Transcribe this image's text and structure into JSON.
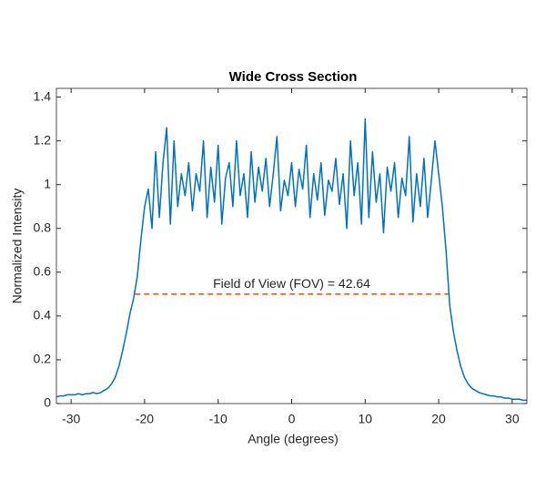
{
  "chart_data": {
    "type": "line",
    "title": "Wide Cross Section",
    "x_label": "Angle (degrees)",
    "y_label": "Normalized Intensity",
    "x": [
      -32,
      -31.5,
      -31,
      -30.5,
      -30,
      -29.5,
      -29,
      -28.5,
      -28,
      -27.5,
      -27,
      -26.5,
      -26,
      -25.5,
      -25,
      -24.5,
      -24,
      -23.5,
      -23,
      -22.5,
      -22,
      -21.5,
      -21,
      -20.5,
      -20,
      -19.5,
      -19,
      -18.5,
      -18,
      -17.5,
      -17,
      -16.5,
      -16,
      -15.5,
      -15,
      -14.5,
      -14,
      -13.5,
      -13,
      -12.5,
      -12,
      -11.5,
      -11,
      -10.5,
      -10,
      -9.5,
      -9,
      -8.5,
      -8,
      -7.5,
      -7,
      -6.5,
      -6,
      -5.5,
      -5,
      -4.5,
      -4,
      -3.5,
      -3,
      -2.5,
      -2,
      -1.5,
      -1,
      -0.5,
      0,
      0.5,
      1,
      1.5,
      2,
      2.5,
      3,
      3.5,
      4,
      4.5,
      5,
      5.5,
      6,
      6.5,
      7,
      7.5,
      8,
      8.5,
      9,
      9.5,
      10,
      10.5,
      11,
      11.5,
      12,
      12.5,
      13,
      13.5,
      14,
      14.5,
      15,
      15.5,
      16,
      16.5,
      17,
      17.5,
      18,
      18.5,
      19,
      19.5,
      20,
      20.5,
      21,
      21.5,
      22,
      22.5,
      23,
      23.5,
      24,
      24.5,
      25,
      25.5,
      26,
      26.5,
      27,
      27.5,
      28,
      28.5,
      29,
      29.5,
      30,
      30.5,
      31,
      31.5,
      32
    ],
    "series": [
      {
        "name": "Cross Section",
        "color": "#0072bd",
        "values": [
          0.03,
          0.035,
          0.035,
          0.04,
          0.04,
          0.04,
          0.045,
          0.04,
          0.045,
          0.045,
          0.05,
          0.045,
          0.05,
          0.06,
          0.07,
          0.09,
          0.12,
          0.17,
          0.24,
          0.32,
          0.41,
          0.48,
          0.58,
          0.75,
          0.9,
          0.98,
          0.8,
          1.15,
          0.85,
          1.1,
          1.26,
          0.82,
          1.2,
          0.9,
          1.05,
          0.95,
          1.1,
          0.88,
          1.05,
          0.97,
          1.2,
          0.85,
          1.08,
          0.92,
          1.18,
          0.82,
          1.03,
          1.1,
          0.9,
          1.2,
          0.95,
          1.05,
          0.85,
          1.15,
          0.92,
          1.08,
          0.97,
          1.12,
          0.9,
          1.05,
          1.22,
          0.88,
          1.02,
          0.95,
          1.1,
          0.9,
          1.07,
          0.98,
          1.18,
          0.85,
          1.05,
          0.93,
          1.1,
          0.86,
          1.02,
          0.97,
          1.12,
          0.91,
          1.05,
          0.8,
          1.2,
          0.95,
          1.1,
          0.82,
          1.3,
          0.85,
          1.15,
          0.92,
          1.05,
          0.78,
          1.08,
          0.97,
          1.1,
          0.85,
          1.03,
          0.95,
          1.22,
          0.83,
          1.05,
          0.9,
          1.12,
          0.85,
          1.02,
          1.2,
          1.05,
          0.9,
          0.7,
          0.45,
          0.33,
          0.24,
          0.17,
          0.12,
          0.09,
          0.07,
          0.06,
          0.05,
          0.045,
          0.04,
          0.035,
          0.035,
          0.03,
          0.03,
          0.025,
          0.025,
          0.02,
          0.02,
          0.02,
          0.015,
          0.015
        ]
      }
    ],
    "fov_line": {
      "x": [
        -21.32,
        21.32
      ],
      "y": 0.5,
      "color": "#d95319"
    },
    "annotation": {
      "text": "Field of View (FOV) = 42.64",
      "x": 0,
      "y": 0.545
    },
    "xlim": [
      -32,
      32
    ],
    "xticks": [
      -30,
      -20,
      -10,
      0,
      10,
      20,
      30
    ],
    "ylim": [
      0,
      1.44
    ],
    "yticks": [
      0,
      0.2,
      0.4,
      0.6,
      0.8,
      1,
      1.2,
      1.4
    ]
  }
}
